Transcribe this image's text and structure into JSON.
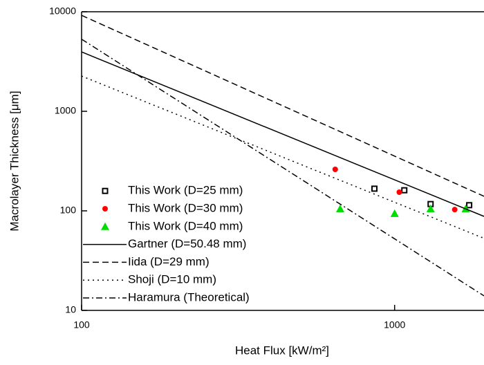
{
  "chart_data": {
    "type": "scatter",
    "xlabel": "Heat Flux [kW/m²]",
    "ylabel": "Macrolayer Thickness [μm]",
    "xscale": "log",
    "yscale": "log",
    "xlim": [
      100,
      1930
    ],
    "ylim": [
      10,
      10000
    ],
    "xticks": [
      100,
      1000
    ],
    "yticks": [
      10,
      100,
      1000,
      10000
    ],
    "legend": "lower left",
    "series": [
      {
        "name": "This Work (D=25 mm)",
        "type": "scatter",
        "marker": "square",
        "color": "#000000",
        "x": [
          862,
          1074,
          1303,
          1731
        ],
        "values": [
          167,
          161,
          117,
          114
        ]
      },
      {
        "name": "This Work (D=30 mm)",
        "type": "scatter",
        "marker": "circle",
        "color": "#ff0000",
        "x": [
          646,
          1035,
          1556
        ],
        "values": [
          261,
          154,
          103
        ]
      },
      {
        "name": "This Work (D=40 mm)",
        "type": "scatter",
        "marker": "triangle",
        "color": "#00dd00",
        "x": [
          670,
          1000,
          1303,
          1687
        ],
        "values": [
          105,
          94,
          105,
          105
        ]
      },
      {
        "name": "Gartner (D=50.48 mm)",
        "type": "line",
        "dash": "solid",
        "color": "#000000",
        "x": [
          100,
          1930
        ],
        "values": [
          3950,
          88
        ]
      },
      {
        "name": "Iida (D=29 mm)",
        "type": "line",
        "dash": "dashed",
        "color": "#000000",
        "x": [
          100,
          1930
        ],
        "values": [
          9200,
          140
        ]
      },
      {
        "name": "Shoji (D=10 mm)",
        "type": "line",
        "dash": "dotted",
        "color": "#000000",
        "x": [
          100,
          1930
        ],
        "values": [
          2260,
          53
        ]
      },
      {
        "name": "Haramura (Theoretical)",
        "type": "line",
        "dash": "dashdot",
        "color": "#000000",
        "x": [
          100,
          1930
        ],
        "values": [
          5300,
          14
        ]
      }
    ]
  }
}
